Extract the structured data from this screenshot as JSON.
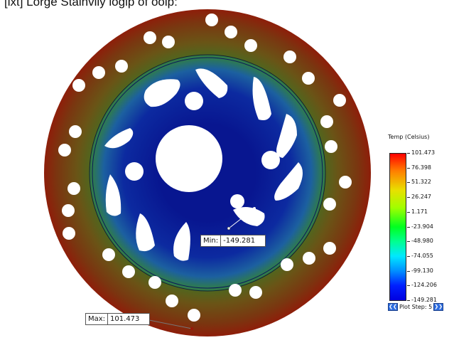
{
  "caption": "[lxt] Lorge Stainvily logip of ooip:",
  "probes": {
    "min": {
      "key": "Min:",
      "value": "-149.281"
    },
    "max": {
      "key": "Max:",
      "value": "101.473"
    }
  },
  "legend": {
    "title": "Temp (Celsius)",
    "ticks": [
      "101.473",
      "76.398",
      "51.322",
      "26.247",
      "1.171",
      "-23.904",
      "-48.980",
      "-74.055",
      "-99.130",
      "-124.206",
      "-149.281"
    ],
    "plot_step": "Plot Step: 5",
    "prev_icon": "double-chevron-left-icon",
    "next_icon": "double-chevron-right-icon"
  },
  "colors": {
    "hot": "#9a1808",
    "warm": "#6a4a12",
    "cold": "#0a1f9a",
    "core": "#0a1680"
  }
}
